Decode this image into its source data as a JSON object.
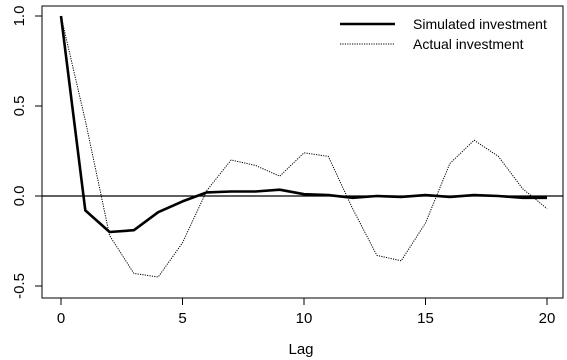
{
  "chart_data": {
    "type": "line",
    "title": "",
    "xlabel": "Lag",
    "ylabel": "",
    "xlim": [
      -1,
      21
    ],
    "ylim": [
      -0.54,
      1.05
    ],
    "x_ticks": [
      "0",
      "5",
      "10",
      "15",
      "20"
    ],
    "y_ticks": [
      "-0.5",
      "0.0",
      "0.5",
      "1.0"
    ],
    "reference_line": 0,
    "legend_position": "top-right",
    "x": [
      0,
      1,
      2,
      3,
      4,
      5,
      6,
      7,
      8,
      9,
      10,
      11,
      12,
      13,
      14,
      15,
      16,
      17,
      18,
      19,
      20
    ],
    "series": [
      {
        "name": "Simulated investment",
        "style": "solid-thick",
        "color": "#000000",
        "values": [
          1.0,
          -0.08,
          -0.2,
          -0.19,
          -0.09,
          -0.03,
          0.02,
          0.025,
          0.025,
          0.035,
          0.01,
          0.005,
          -0.01,
          0.0,
          -0.005,
          0.005,
          -0.005,
          0.005,
          0.0,
          -0.01,
          -0.01
        ]
      },
      {
        "name": "Actual investment",
        "style": "dotted-thin",
        "color": "#000000",
        "values": [
          1.0,
          0.42,
          -0.22,
          -0.43,
          -0.45,
          -0.26,
          0.03,
          0.2,
          0.17,
          0.11,
          0.24,
          0.22,
          -0.07,
          -0.33,
          -0.36,
          -0.15,
          0.18,
          0.31,
          0.22,
          0.04,
          -0.07
        ]
      }
    ]
  }
}
